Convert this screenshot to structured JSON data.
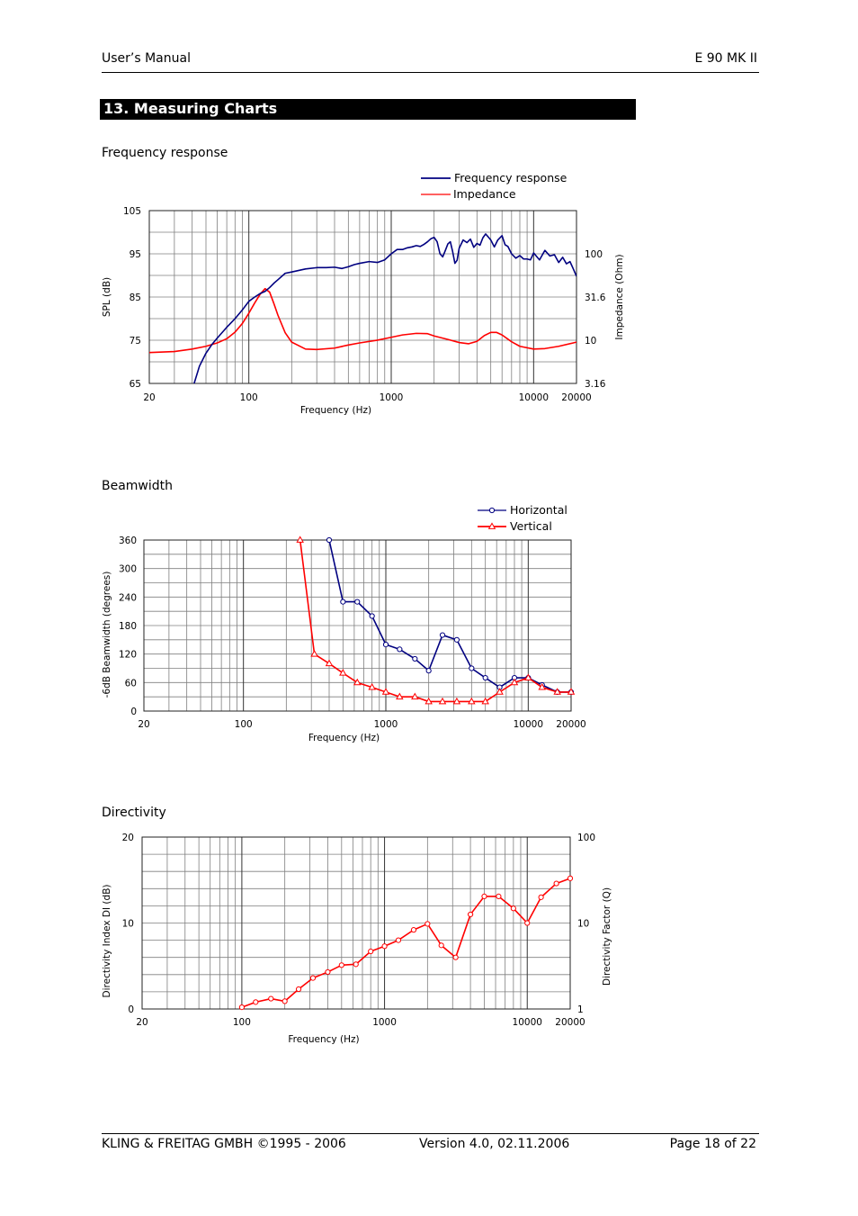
{
  "header": {
    "left": "User’s Manual",
    "right": "E 90 MK II"
  },
  "section": {
    "number": "13.",
    "title": "Measuring Charts"
  },
  "footer": {
    "company": "KLING & FREITAG GMBH ©1995 - 2006",
    "version": "Version 4.0, 02.11.2006",
    "page": "Page 18 of 22"
  },
  "colors": {
    "frequency_response": "#000080",
    "impedance": "#ff0000",
    "grid": "#7f7f7f"
  },
  "chart_data": [
    {
      "type": "line",
      "title": "Frequency response",
      "xlabel": "Frequency (Hz)",
      "ylabel": "SPL (dB)",
      "y2label": "Impedance (Ohm)",
      "xscale": "log",
      "xlim": [
        20,
        20000
      ],
      "ylim": [
        65,
        105
      ],
      "y2scale": "log",
      "y2lim": [
        3.16,
        316
      ],
      "x_ticks": [
        "20",
        "100",
        "1000",
        "10000",
        "20000"
      ],
      "y_ticks": [
        "65",
        "75",
        "85",
        "95",
        "105"
      ],
      "y2_ticks": [
        "3.16",
        "10",
        "31.6",
        "100"
      ],
      "legend": "top-right",
      "grid": true,
      "series": [
        {
          "name": "Frequency response",
          "axis": "left",
          "x": [
            20,
            40,
            45,
            50,
            55,
            60,
            70,
            80,
            90,
            100,
            110,
            120,
            130,
            140,
            150,
            160,
            180,
            200,
            250,
            300,
            350,
            400,
            450,
            500,
            550,
            600,
            700,
            800,
            900,
            1000,
            1100,
            1200,
            1300,
            1400,
            1500,
            1600,
            1700,
            1800,
            1900,
            2000,
            2100,
            2200,
            2300,
            2400,
            2500,
            2600,
            2700,
            2800,
            2900,
            3000,
            3200,
            3400,
            3600,
            3800,
            4000,
            4200,
            4400,
            4600,
            4800,
            5000,
            5300,
            5600,
            6000,
            6300,
            6600,
            7000,
            7500,
            8000,
            8500,
            9000,
            9500,
            10000,
            11000,
            12000,
            13000,
            14000,
            15000,
            16000,
            17000,
            18000,
            19000,
            20000
          ],
          "y": [
            null,
            63.5,
            69,
            72,
            74,
            75.5,
            78,
            80,
            82,
            84,
            85,
            85.8,
            86.3,
            87.2,
            88.2,
            89,
            90.5,
            90.8,
            91.5,
            91.8,
            91.8,
            91.9,
            91.6,
            92,
            92.5,
            92.8,
            93.2,
            93,
            93.6,
            95,
            96,
            96,
            96.4,
            96.6,
            96.9,
            96.7,
            97.2,
            97.8,
            98.5,
            98.8,
            97.8,
            95,
            94.3,
            95.8,
            97.3,
            97.8,
            95.5,
            92.8,
            93.5,
            96.3,
            98.2,
            97.6,
            98.4,
            96.5,
            97.4,
            97,
            98.7,
            99.6,
            98.9,
            98.2,
            96.6,
            98.2,
            99.2,
            97.1,
            96.7,
            95,
            94,
            94.6,
            93.8,
            93.8,
            93.6,
            95.2,
            93.6,
            95.8,
            94.5,
            94.8,
            93,
            94.2,
            92.7,
            93.2,
            91.5,
            89.8
          ]
        },
        {
          "name": "Impedance",
          "axis": "right",
          "x": [
            20,
            30,
            40,
            50,
            60,
            70,
            80,
            90,
            100,
            110,
            120,
            130,
            140,
            150,
            160,
            180,
            200,
            250,
            300,
            400,
            500,
            600,
            800,
            1000,
            1200,
            1500,
            1800,
            2000,
            2500,
            3000,
            3500,
            4000,
            4500,
            5000,
            5500,
            6000,
            7000,
            8000,
            10000,
            12000,
            15000,
            20000
          ],
          "y": [
            7.2,
            7.4,
            7.9,
            8.5,
            9.3,
            10.4,
            12.4,
            15.6,
            20.5,
            27,
            34,
            39.5,
            36,
            26.5,
            19.5,
            12.2,
            9.5,
            7.9,
            7.8,
            8.1,
            8.8,
            9.3,
            10,
            10.8,
            11.5,
            12,
            11.9,
            11.2,
            10.2,
            9.4,
            9.1,
            9.7,
            11.3,
            12.3,
            12.3,
            11.5,
            9.6,
            8.5,
            7.9,
            8,
            8.5,
            9.5
          ]
        }
      ]
    },
    {
      "type": "line",
      "title": "Beamwidth",
      "xlabel": "Frequency (Hz)",
      "ylabel": "-6dB Beamwidth (degrees)",
      "xscale": "log",
      "xlim": [
        20,
        20000
      ],
      "ylim": [
        0,
        360
      ],
      "x_ticks": [
        "20",
        "100",
        "1000",
        "10000",
        "20000"
      ],
      "y_ticks": [
        "0",
        "60",
        "120",
        "180",
        "240",
        "300",
        "360"
      ],
      "legend": "top-right",
      "grid": true,
      "series": [
        {
          "name": "Horizontal",
          "marker": "circle",
          "x": [
            400,
            500,
            630,
            800,
            1000,
            1250,
            1600,
            2000,
            2500,
            3150,
            4000,
            5000,
            6300,
            8000,
            10000,
            12500,
            16000,
            20000
          ],
          "y": [
            360,
            230,
            230,
            200,
            140,
            130,
            110,
            85,
            160,
            150,
            90,
            70,
            50,
            70,
            70,
            55,
            40,
            40
          ]
        },
        {
          "name": "Vertical",
          "marker": "triangle",
          "x": [
            250,
            315,
            400,
            500,
            630,
            800,
            1000,
            1250,
            1600,
            2000,
            2500,
            3150,
            4000,
            5000,
            6300,
            8000,
            10000,
            12500,
            16000,
            20000
          ],
          "y": [
            360,
            120,
            100,
            80,
            60,
            50,
            40,
            30,
            30,
            20,
            20,
            20,
            20,
            20,
            40,
            60,
            70,
            50,
            40,
            40
          ]
        }
      ]
    },
    {
      "type": "line",
      "title": "Directivity",
      "xlabel": "Frequency (Hz)",
      "ylabel": "Directivity Index DI (dB)",
      "y2label": "Directivity Factor (Q)",
      "xscale": "log",
      "xlim": [
        20,
        20000
      ],
      "ylim": [
        0,
        20
      ],
      "y2scale": "log",
      "y2lim": [
        1,
        100
      ],
      "x_ticks": [
        "20",
        "100",
        "1000",
        "10000",
        "20000"
      ],
      "y_ticks": [
        "0",
        "10",
        "20"
      ],
      "y2_ticks": [
        "1",
        "10",
        "100"
      ],
      "grid": true,
      "series": [
        {
          "name": "DI",
          "marker": "circle",
          "x": [
            100,
            125,
            160,
            200,
            250,
            315,
            400,
            500,
            630,
            800,
            1000,
            1250,
            1600,
            2000,
            2500,
            3150,
            4000,
            5000,
            6300,
            8000,
            10000,
            12500,
            16000,
            20000
          ],
          "y": [
            0.2,
            0.8,
            1.2,
            0.9,
            2.3,
            3.6,
            4.3,
            5.1,
            5.2,
            6.7,
            7.3,
            8,
            9.2,
            9.9,
            7.4,
            6,
            11,
            13.1,
            13.1,
            11.7,
            10,
            13,
            14.6,
            15.2
          ]
        }
      ]
    }
  ]
}
